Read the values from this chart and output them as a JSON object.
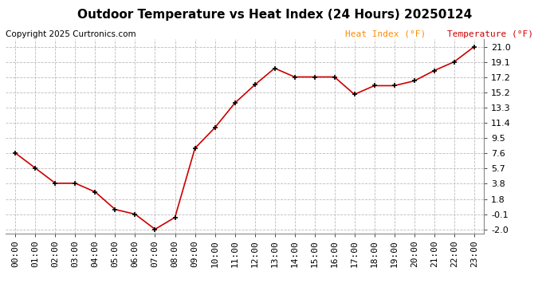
{
  "title": "Outdoor Temperature vs Heat Index (24 Hours) 20250124",
  "copyright": "Copyright 2025 Curtronics.com",
  "legend_heat": "Heat Index (°F)",
  "legend_temp": "Temperature (°F)",
  "hours": [
    "00:00",
    "01:00",
    "02:00",
    "03:00",
    "04:00",
    "05:00",
    "06:00",
    "07:00",
    "08:00",
    "09:00",
    "10:00",
    "11:00",
    "12:00",
    "13:00",
    "14:00",
    "15:00",
    "16:00",
    "17:00",
    "18:00",
    "19:00",
    "20:00",
    "21:00",
    "22:00",
    "23:00"
  ],
  "temperature": [
    7.6,
    5.7,
    3.8,
    3.8,
    2.7,
    0.5,
    -0.1,
    -2.0,
    -0.5,
    8.2,
    10.8,
    13.9,
    16.2,
    18.3,
    17.2,
    17.2,
    17.2,
    15.0,
    16.1,
    16.1,
    16.7,
    18.0,
    19.1,
    21.0
  ],
  "line_color": "#cc0000",
  "marker_color": "#000000",
  "background_color": "#ffffff",
  "grid_color": "#bbbbbb",
  "title_color": "#000000",
  "legend_heat_color": "#ff8c00",
  "legend_temp_color": "#cc0000",
  "ylim": [
    -2.5,
    22.0
  ],
  "yticks": [
    -2.0,
    -0.1,
    1.8,
    3.8,
    5.7,
    7.6,
    9.5,
    11.4,
    13.3,
    15.2,
    17.2,
    19.1,
    21.0
  ],
  "title_fontsize": 11,
  "tick_fontsize": 8,
  "copyright_fontsize": 7.5,
  "legend_fontsize": 8
}
